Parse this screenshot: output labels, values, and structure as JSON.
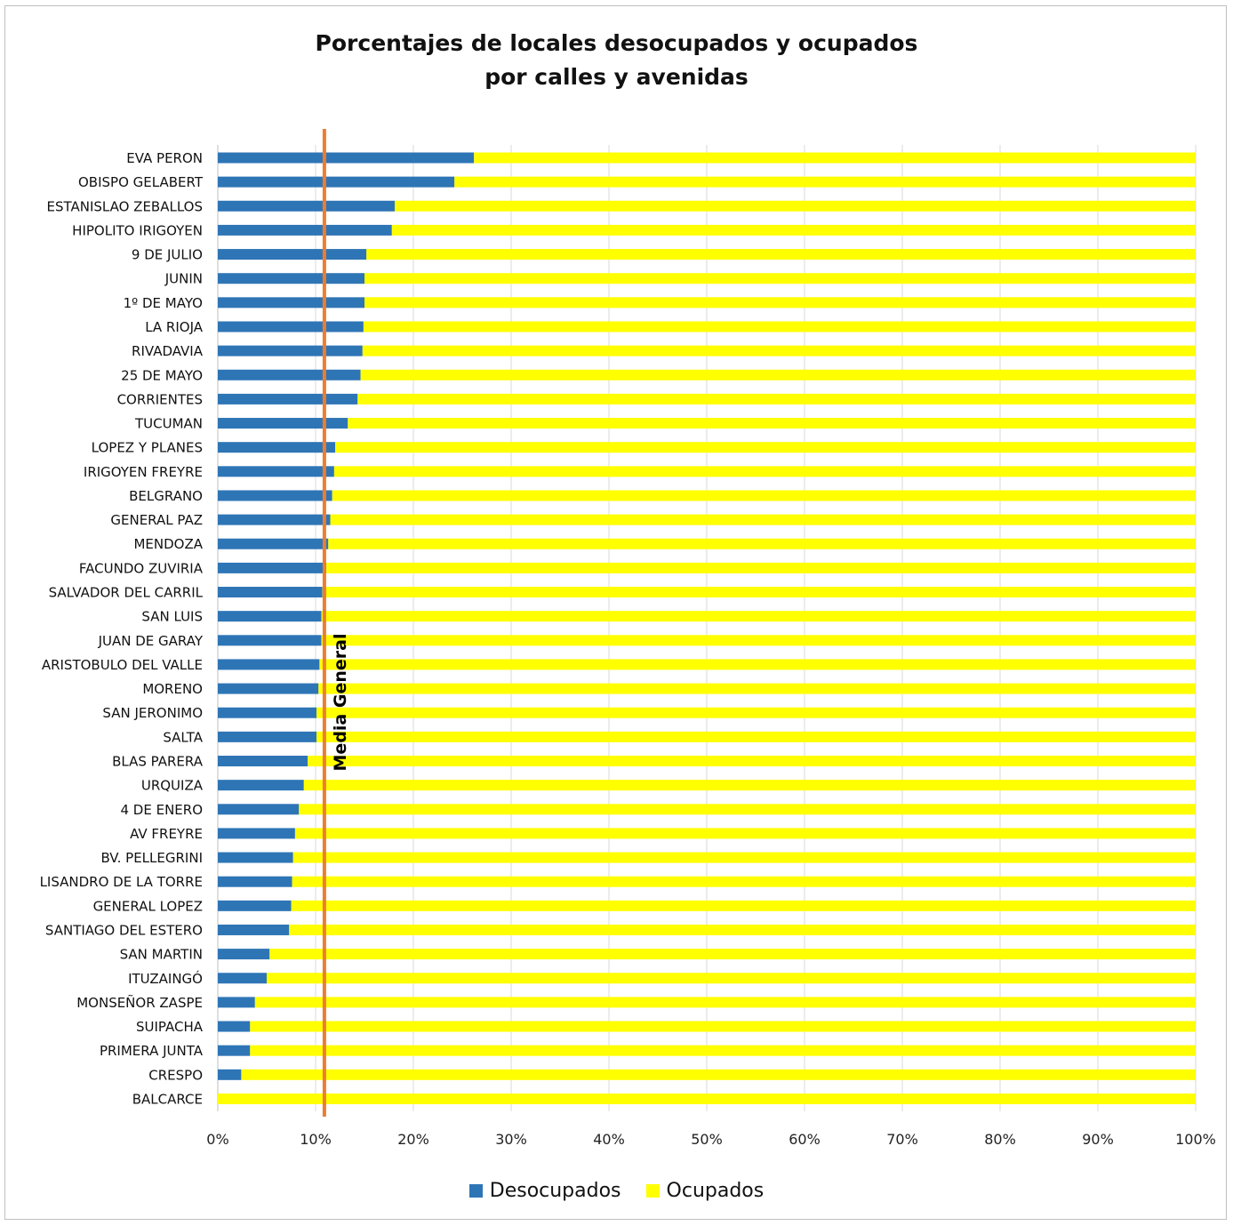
{
  "chart_data": {
    "type": "bar",
    "orientation": "horizontal",
    "stacked": "percent",
    "title": [
      "Porcentajes de locales desocupados y ocupados",
      "por calles y avenidas"
    ],
    "categories": [
      "EVA PERON",
      "OBISPO GELABERT",
      "ESTANISLAO ZEBALLOS",
      "HIPOLITO IRIGOYEN",
      "9 DE JULIO",
      "JUNIN",
      "1º DE MAYO",
      "LA RIOJA",
      "RIVADAVIA",
      "25 DE MAYO",
      "CORRIENTES",
      "TUCUMAN",
      "LOPEZ Y PLANES",
      "IRIGOYEN FREYRE",
      "BELGRANO",
      "GENERAL PAZ",
      "MENDOZA",
      "FACUNDO ZUVIRIA",
      "SALVADOR DEL CARRIL",
      "SAN LUIS",
      "JUAN DE GARAY",
      "ARISTOBULO DEL VALLE",
      "MORENO",
      "SAN JERONIMO",
      "SALTA",
      "BLAS PARERA",
      "URQUIZA",
      "4 DE ENERO",
      "AV FREYRE",
      "BV. PELLEGRINI",
      "LISANDRO DE LA TORRE",
      "GENERAL LOPEZ",
      "SANTIAGO DEL ESTERO",
      "SAN MARTIN",
      "ITUZAINGÓ",
      "MONSEÑOR ZASPE",
      "SUIPACHA",
      "PRIMERA JUNTA",
      "CRESPO",
      "BALCARCE"
    ],
    "series": [
      {
        "name": "Desocupados",
        "color": "#2e75b6",
        "values": [
          26.2,
          24.2,
          18.1,
          17.8,
          15.2,
          15.0,
          15.0,
          14.9,
          14.8,
          14.6,
          14.3,
          13.3,
          12.0,
          11.9,
          11.7,
          11.5,
          11.3,
          11.1,
          10.7,
          10.6,
          10.6,
          10.4,
          10.3,
          10.1,
          10.1,
          9.2,
          8.8,
          8.3,
          7.9,
          7.7,
          7.6,
          7.5,
          7.3,
          5.3,
          5.0,
          3.8,
          3.3,
          3.3,
          2.4,
          0.0
        ]
      },
      {
        "name": "Ocupados",
        "color": "#ffff00",
        "values": [
          73.8,
          75.8,
          81.9,
          82.2,
          84.8,
          85.0,
          85.0,
          85.1,
          85.2,
          85.4,
          85.7,
          86.7,
          88.0,
          88.1,
          88.3,
          88.5,
          88.7,
          88.9,
          89.3,
          89.4,
          89.4,
          89.6,
          89.7,
          89.9,
          89.9,
          90.8,
          91.2,
          91.7,
          92.1,
          92.3,
          92.4,
          92.5,
          92.7,
          94.7,
          95.0,
          96.2,
          96.7,
          96.7,
          97.6,
          100.0
        ]
      }
    ],
    "xlim": [
      0,
      100
    ],
    "x_ticks": [
      "0%",
      "10%",
      "20%",
      "30%",
      "40%",
      "50%",
      "60%",
      "70%",
      "80%",
      "90%",
      "100%"
    ],
    "grid": "vertical",
    "legend": "bottom",
    "reference_line": {
      "label": "Media General",
      "value": 10.9,
      "color": "#ed7d31"
    }
  }
}
